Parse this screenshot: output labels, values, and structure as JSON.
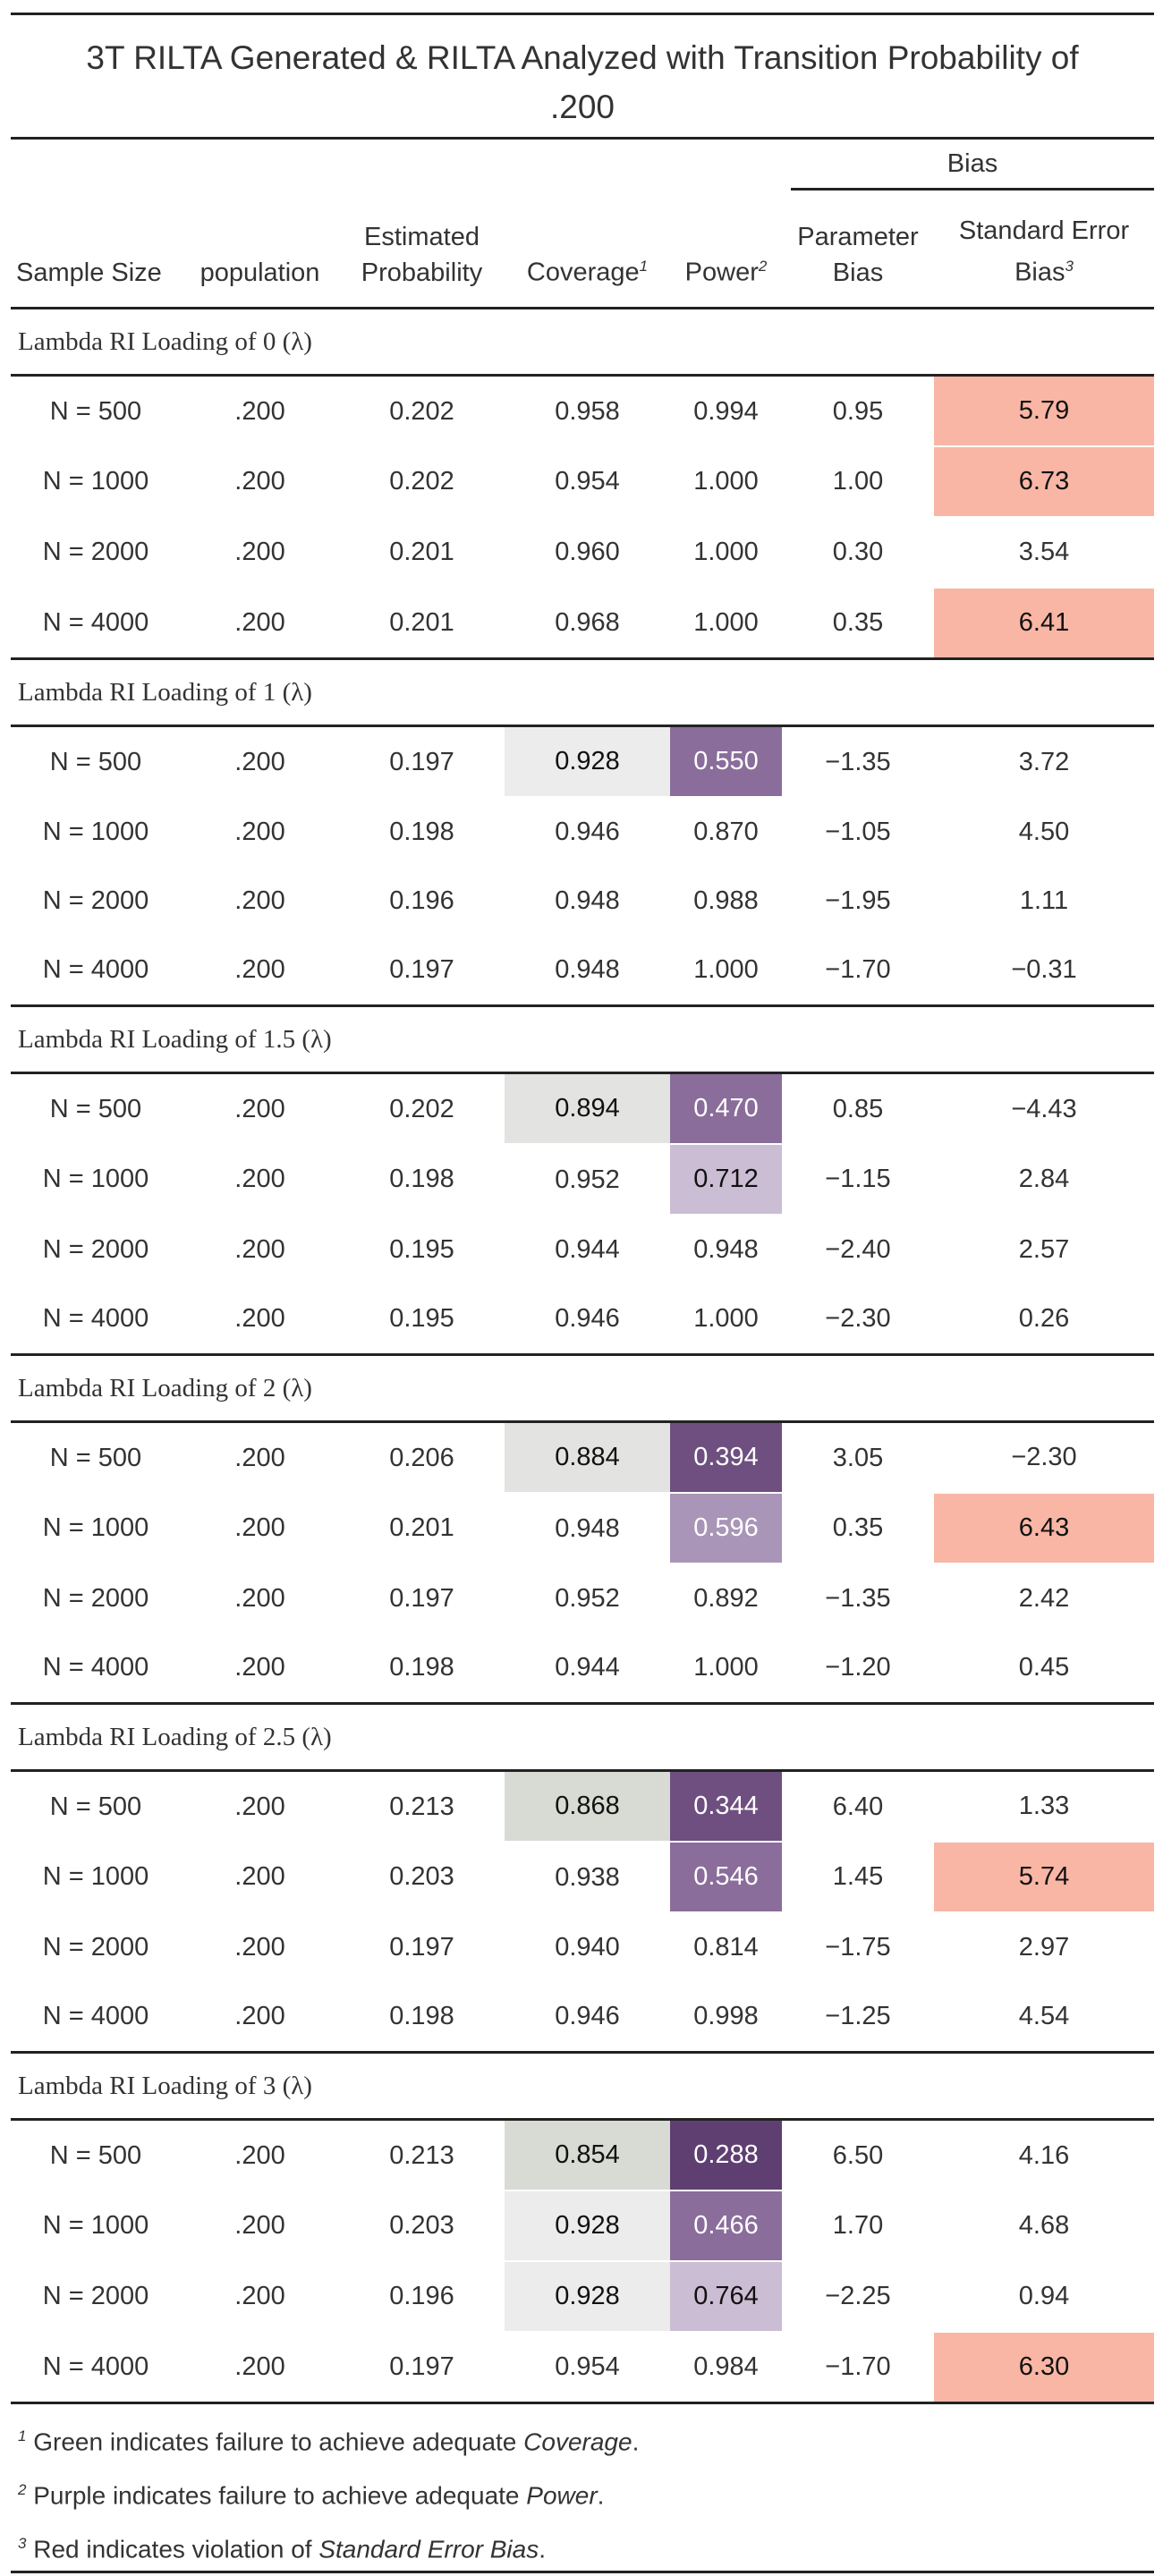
{
  "title_line1": "3T RILTA Generated & RILTA Analyzed with Transition Probability of",
  "title_line2": ".200",
  "headers": {
    "bias_group": "Bias",
    "sample_size": "Sample Size",
    "population": "population",
    "estimated_probability_1": "Estimated",
    "estimated_probability_2": "Probability",
    "coverage": "Coverage",
    "coverage_sup": "1",
    "power": "Power",
    "power_sup": "2",
    "parameter_bias_1": "Parameter",
    "parameter_bias_2": "Bias",
    "se_bias_1": "Standard Error",
    "se_bias_2": "Bias",
    "se_bias_sup": "3"
  },
  "colors": {
    "red": "#f9b6a5",
    "green_light": "#ececec",
    "green_mid": "#e3e4e1",
    "green_dark": "#d8dbd4",
    "purple_darkest": "#5f3f72",
    "purple_dark": "#6e4f80",
    "purple_mid": "#8a6d9b",
    "purple_light": "#a995b7",
    "purple_lightest": "#cbbdd4"
  },
  "groups": [
    {
      "label": "Lambda RI Loading of 0 (λ)",
      "rows": [
        {
          "n": "N = 500",
          "pop": ".200",
          "est": "0.202",
          "cov": "0.958",
          "pow": "0.994",
          "pb": "0.95",
          "seb": "5.79",
          "seb_hl": "red"
        },
        {
          "n": "N = 1000",
          "pop": ".200",
          "est": "0.202",
          "cov": "0.954",
          "pow": "1.000",
          "pb": "1.00",
          "seb": "6.73",
          "seb_hl": "red"
        },
        {
          "n": "N = 2000",
          "pop": ".200",
          "est": "0.201",
          "cov": "0.960",
          "pow": "1.000",
          "pb": "0.30",
          "seb": "3.54"
        },
        {
          "n": "N = 4000",
          "pop": ".200",
          "est": "0.201",
          "cov": "0.968",
          "pow": "1.000",
          "pb": "0.35",
          "seb": "6.41",
          "seb_hl": "red"
        }
      ]
    },
    {
      "label": "Lambda RI Loading of 1 (λ)",
      "rows": [
        {
          "n": "N = 500",
          "pop": ".200",
          "est": "0.197",
          "cov": "0.928",
          "cov_hl": "green_light",
          "pow": "0.550",
          "pow_hl": "purple_mid",
          "pb": "−1.35",
          "seb": "3.72"
        },
        {
          "n": "N = 1000",
          "pop": ".200",
          "est": "0.198",
          "cov": "0.946",
          "pow": "0.870",
          "pb": "−1.05",
          "seb": "4.50"
        },
        {
          "n": "N = 2000",
          "pop": ".200",
          "est": "0.196",
          "cov": "0.948",
          "pow": "0.988",
          "pb": "−1.95",
          "seb": "1.11"
        },
        {
          "n": "N = 4000",
          "pop": ".200",
          "est": "0.197",
          "cov": "0.948",
          "pow": "1.000",
          "pb": "−1.70",
          "seb": "−0.31"
        }
      ]
    },
    {
      "label": "Lambda RI Loading of 1.5 (λ)",
      "rows": [
        {
          "n": "N = 500",
          "pop": ".200",
          "est": "0.202",
          "cov": "0.894",
          "cov_hl": "green_mid",
          "pow": "0.470",
          "pow_hl": "purple_mid",
          "pb": "0.85",
          "seb": "−4.43"
        },
        {
          "n": "N = 1000",
          "pop": ".200",
          "est": "0.198",
          "cov": "0.952",
          "pow": "0.712",
          "pow_hl": "purple_lightest",
          "pb": "−1.15",
          "seb": "2.84"
        },
        {
          "n": "N = 2000",
          "pop": ".200",
          "est": "0.195",
          "cov": "0.944",
          "pow": "0.948",
          "pb": "−2.40",
          "seb": "2.57"
        },
        {
          "n": "N = 4000",
          "pop": ".200",
          "est": "0.195",
          "cov": "0.946",
          "pow": "1.000",
          "pb": "−2.30",
          "seb": "0.26"
        }
      ]
    },
    {
      "label": "Lambda RI Loading of 2 (λ)",
      "rows": [
        {
          "n": "N = 500",
          "pop": ".200",
          "est": "0.206",
          "cov": "0.884",
          "cov_hl": "green_mid",
          "pow": "0.394",
          "pow_hl": "purple_dark",
          "pb": "3.05",
          "seb": "−2.30"
        },
        {
          "n": "N = 1000",
          "pop": ".200",
          "est": "0.201",
          "cov": "0.948",
          "pow": "0.596",
          "pow_hl": "purple_light",
          "pb": "0.35",
          "seb": "6.43",
          "seb_hl": "red"
        },
        {
          "n": "N = 2000",
          "pop": ".200",
          "est": "0.197",
          "cov": "0.952",
          "pow": "0.892",
          "pb": "−1.35",
          "seb": "2.42"
        },
        {
          "n": "N = 4000",
          "pop": ".200",
          "est": "0.198",
          "cov": "0.944",
          "pow": "1.000",
          "pb": "−1.20",
          "seb": "0.45"
        }
      ]
    },
    {
      "label": "Lambda RI Loading of 2.5 (λ)",
      "rows": [
        {
          "n": "N = 500",
          "pop": ".200",
          "est": "0.213",
          "cov": "0.868",
          "cov_hl": "green_dark",
          "pow": "0.344",
          "pow_hl": "purple_dark",
          "pb": "6.40",
          "seb": "1.33"
        },
        {
          "n": "N = 1000",
          "pop": ".200",
          "est": "0.203",
          "cov": "0.938",
          "pow": "0.546",
          "pow_hl": "purple_mid",
          "pb": "1.45",
          "seb": "5.74",
          "seb_hl": "red"
        },
        {
          "n": "N = 2000",
          "pop": ".200",
          "est": "0.197",
          "cov": "0.940",
          "pow": "0.814",
          "pb": "−1.75",
          "seb": "2.97"
        },
        {
          "n": "N = 4000",
          "pop": ".200",
          "est": "0.198",
          "cov": "0.946",
          "pow": "0.998",
          "pb": "−1.25",
          "seb": "4.54"
        }
      ]
    },
    {
      "label": "Lambda RI Loading of 3 (λ)",
      "rows": [
        {
          "n": "N = 500",
          "pop": ".200",
          "est": "0.213",
          "cov": "0.854",
          "cov_hl": "green_dark",
          "pow": "0.288",
          "pow_hl": "purple_darkest",
          "pb": "6.50",
          "seb": "4.16"
        },
        {
          "n": "N = 1000",
          "pop": ".200",
          "est": "0.203",
          "cov": "0.928",
          "cov_hl": "green_light",
          "pow": "0.466",
          "pow_hl": "purple_mid",
          "pb": "1.70",
          "seb": "4.68"
        },
        {
          "n": "N = 2000",
          "pop": ".200",
          "est": "0.196",
          "cov": "0.928",
          "cov_hl": "green_light",
          "pow": "0.764",
          "pow_hl": "purple_lightest",
          "pb": "−2.25",
          "seb": "0.94"
        },
        {
          "n": "N = 4000",
          "pop": ".200",
          "est": "0.197",
          "cov": "0.954",
          "pow": "0.984",
          "pb": "−1.70",
          "seb": "6.30",
          "seb_hl": "red"
        }
      ]
    }
  ],
  "footnotes": [
    {
      "sup": "1",
      "text": "Green indicates failure to achieve adequate ",
      "em": "Coverage",
      "end": "."
    },
    {
      "sup": "2",
      "text": "Purple indicates failure to achieve adequate ",
      "em": "Power",
      "end": "."
    },
    {
      "sup": "3",
      "text": "Red indicates violation of ",
      "em": "Standard Error Bias",
      "end": "."
    }
  ]
}
